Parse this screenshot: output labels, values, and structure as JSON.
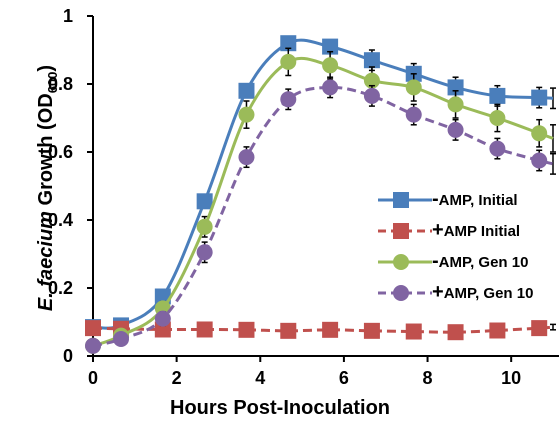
{
  "chart_data": {
    "type": "line",
    "xlabel": "Hours Post-Inoculation",
    "ylabel_italic": "E. faecium",
    "ylabel_rest": " Growth (OD",
    "ylabel_sub": "600",
    "ylabel_close": ")",
    "xlim": [
      0,
      11
    ],
    "ylim": [
      0,
      1
    ],
    "x_ticks": [
      "0",
      "2",
      "4",
      "6",
      "8",
      "10"
    ],
    "y_ticks": [
      "0",
      "0.2",
      "0.4",
      "0.6",
      "0.8",
      "1"
    ],
    "x": [
      0,
      0.67,
      1.67,
      2.67,
      3.67,
      4.67,
      5.67,
      6.67,
      7.67,
      8.67,
      9.67,
      10.67,
      11
    ],
    "legend_position": "right",
    "series": [
      {
        "name": "AMP, Initial",
        "sign": "-",
        "color": "#4a7ebb",
        "marker": "square",
        "dash": "solid",
        "values": [
          0.085,
          0.09,
          0.175,
          0.455,
          0.78,
          0.92,
          0.91,
          0.87,
          0.83,
          0.79,
          0.765,
          0.76,
          0.758
        ],
        "errors": [
          0.01,
          0.01,
          0.01,
          0.02,
          0.02,
          0.02,
          0.02,
          0.03,
          0.03,
          0.03,
          0.03,
          0.03,
          0.03
        ]
      },
      {
        "name": "AMP Initial",
        "sign": "+",
        "color": "#c0504d",
        "marker": "square",
        "dash": "dash",
        "values": [
          0.082,
          0.08,
          0.078,
          0.078,
          0.077,
          0.074,
          0.077,
          0.074,
          0.072,
          0.07,
          0.075,
          0.082,
          0.085
        ],
        "errors": [
          0.008,
          0.008,
          0.008,
          0.008,
          0.008,
          0.008,
          0.008,
          0.008,
          0.008,
          0.008,
          0.008,
          0.008,
          0.008
        ]
      },
      {
        "name": "AMP, Gen 10",
        "sign": "-",
        "color": "#9bbb59",
        "marker": "circle",
        "dash": "solid",
        "values": [
          0.03,
          0.06,
          0.14,
          0.38,
          0.71,
          0.865,
          0.855,
          0.81,
          0.79,
          0.74,
          0.7,
          0.655,
          0.64
        ],
        "errors": [
          0.01,
          0.01,
          0.02,
          0.03,
          0.04,
          0.04,
          0.04,
          0.04,
          0.04,
          0.04,
          0.04,
          0.04,
          0.04
        ]
      },
      {
        "name": "AMP, Gen 10",
        "sign": "+",
        "color": "#8064a2",
        "marker": "circle",
        "dash": "dash",
        "values": [
          0.03,
          0.05,
          0.11,
          0.305,
          0.585,
          0.755,
          0.79,
          0.765,
          0.71,
          0.665,
          0.61,
          0.575,
          0.565
        ],
        "errors": [
          0.01,
          0.01,
          0.02,
          0.03,
          0.03,
          0.03,
          0.03,
          0.03,
          0.03,
          0.03,
          0.03,
          0.03,
          0.03
        ]
      }
    ]
  }
}
